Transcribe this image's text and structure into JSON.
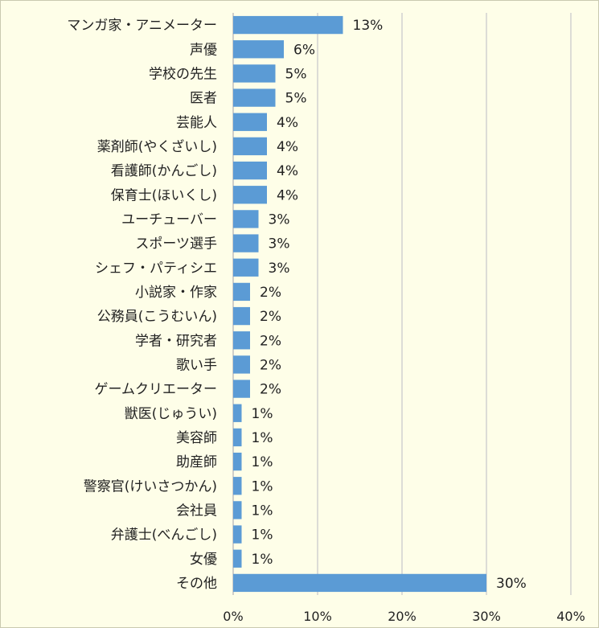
{
  "chart_data": {
    "type": "bar",
    "orientation": "horizontal",
    "title": "",
    "xlabel": "",
    "ylabel": "",
    "xlim": [
      0,
      40
    ],
    "x_ticks": [
      "0%",
      "10%",
      "20%",
      "30%",
      "40%"
    ],
    "grid": "vertical",
    "legend": "none",
    "unit": "%",
    "bar_color": "#5b9bd5",
    "background_color": "#fefee8",
    "categories": [
      "マンガ家・アニメーター",
      "声優",
      "学校の先生",
      "医者",
      "芸能人",
      "薬剤師(やくざいし)",
      "看護師(かんごし)",
      "保育士(ほいくし)",
      "ユーチューバー",
      "スポーツ選手",
      "シェフ・パティシエ",
      "小説家・作家",
      "公務員(こうむいん)",
      "学者・研究者",
      "歌い手",
      "ゲームクリエーター",
      "獣医(じゅうい)",
      "美容師",
      "助産師",
      "警察官(けいさつかん)",
      "会社員",
      "弁護士(べんごし)",
      "女優",
      "その他"
    ],
    "values": [
      13,
      6,
      5,
      5,
      4,
      4,
      4,
      4,
      3,
      3,
      3,
      2,
      2,
      2,
      2,
      2,
      1,
      1,
      1,
      1,
      1,
      1,
      1,
      30
    ],
    "value_labels": [
      "13%",
      "6%",
      "5%",
      "5%",
      "4%",
      "4%",
      "4%",
      "4%",
      "3%",
      "3%",
      "3%",
      "2%",
      "2%",
      "2%",
      "2%",
      "2%",
      "1%",
      "1%",
      "1%",
      "1%",
      "1%",
      "1%",
      "1%",
      "30%"
    ]
  }
}
